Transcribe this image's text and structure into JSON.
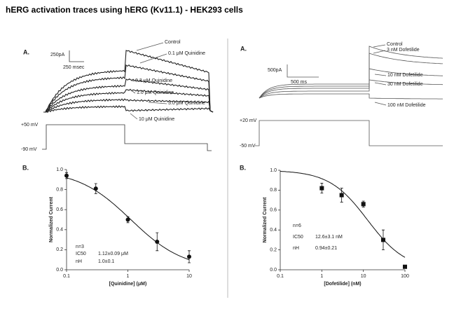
{
  "title": "hERG activation traces using hERG (Kv11.1) - HEK293 cells",
  "panel_a": [
    {
      "label": "A.",
      "scale_current": "250pA",
      "scale_time": "250 msec",
      "traces": [
        "Control",
        "0.1 μM Quinidine",
        "0.3 μM Quinidine",
        "1.0 μM Quinidine",
        "3.0 μM Quinidine",
        "10 μM Quinidine"
      ],
      "voltages": [
        "+50 mV",
        "-90 mV"
      ]
    },
    {
      "label": "A.",
      "scale_current": "500pA",
      "scale_time": "500 ms",
      "traces": [
        "Control",
        "3 nM Dofetilide",
        "10 nM Dofetilide",
        "30 nM Dofetilide",
        "100 nM Dofetilide"
      ],
      "voltages": [
        "+20 mV",
        "-50 mV"
      ]
    }
  ],
  "chart_data": [
    {
      "type": "scatter",
      "label": "B.",
      "xlabel": "[Quinidine] (μM)",
      "ylabel": "Normalized Current",
      "xscale": "log",
      "xlim": [
        0.1,
        10
      ],
      "xticks": [
        0.1,
        1,
        10
      ],
      "ylim": [
        0,
        1
      ],
      "yticks": [
        {
          "value": 0,
          "label": "0.0"
        },
        {
          "value": 0.2,
          "label": "0.2"
        },
        {
          "value": 0.4,
          "label": "0.4"
        },
        {
          "value": 0.6,
          "label": "0.6"
        },
        {
          "value": 0.8,
          "label": "0.8"
        },
        {
          "value": 1,
          "label": "1.0"
        }
      ],
      "marker": "circle",
      "color": "#111",
      "x": [
        0.1,
        0.3,
        1,
        3,
        10
      ],
      "values": [
        0.94,
        0.81,
        0.5,
        0.28,
        0.13
      ],
      "errors": [
        0.03,
        0.05,
        0.03,
        0.09,
        0.06
      ],
      "fit": {
        "ic50": 1.12,
        "hill": 1.0
      },
      "annotations": [
        "n=3",
        "IC50",
        "1.12±0.09 μM",
        "nH",
        "1.0±0.1"
      ]
    },
    {
      "type": "scatter",
      "label": "B.",
      "xlabel": "[Dofetilide] (nM)",
      "ylabel": "Normalized Current",
      "xscale": "log",
      "xlim": [
        0.1,
        100
      ],
      "xticks": [
        0.1,
        1,
        10,
        100
      ],
      "ylim": [
        0,
        1
      ],
      "yticks": [
        {
          "value": 0,
          "label": "0.0"
        },
        {
          "value": 0.2,
          "label": "0.2"
        },
        {
          "value": 0.4,
          "label": "0.4"
        },
        {
          "value": 0.6,
          "label": "0.6"
        },
        {
          "value": 0.8,
          "label": "0.8"
        },
        {
          "value": 1,
          "label": "1.0"
        }
      ],
      "marker": "square",
      "color": "#111",
      "x": [
        1,
        3,
        10,
        30,
        100
      ],
      "values": [
        0.82,
        0.75,
        0.66,
        0.3,
        0.03
      ],
      "errors": [
        0.05,
        0.07,
        0.03,
        0.1,
        0.01
      ],
      "fit": {
        "ic50": 12.6,
        "hill": 0.94
      },
      "annotations": [
        "n=6",
        "IC50",
        "12.6±3.1 nM",
        "nH",
        "0.94±0.21"
      ]
    }
  ]
}
